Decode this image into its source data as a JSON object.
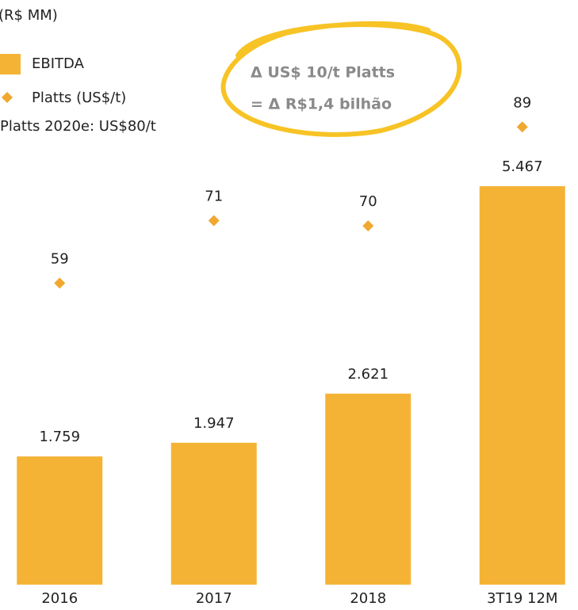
{
  "chart_data": {
    "type": "bar",
    "unit_label": "(R$ MM)",
    "categories": [
      "2016",
      "2017",
      "2018",
      "3T19 12M"
    ],
    "series": [
      {
        "name": "EBITDA",
        "type": "bar",
        "color": "#f5b335",
        "values": [
          1759,
          1947,
          2621,
          5467
        ],
        "value_labels": [
          "1.759",
          "1.947",
          "2.621",
          "5.467"
        ]
      },
      {
        "name": "Platts (US$/t)",
        "type": "scatter",
        "marker": "diamond",
        "axis": "y2",
        "color": "#f0a830",
        "values": [
          59,
          71,
          70,
          89
        ]
      }
    ],
    "ylim": [
      0,
      6000
    ],
    "y2lim": [
      0,
      100
    ],
    "annotations": [
      "Platts 2020e: US$80/t",
      "Δ US$ 10/t Platts",
      "= Δ R$1,4 bilhão"
    ]
  }
}
